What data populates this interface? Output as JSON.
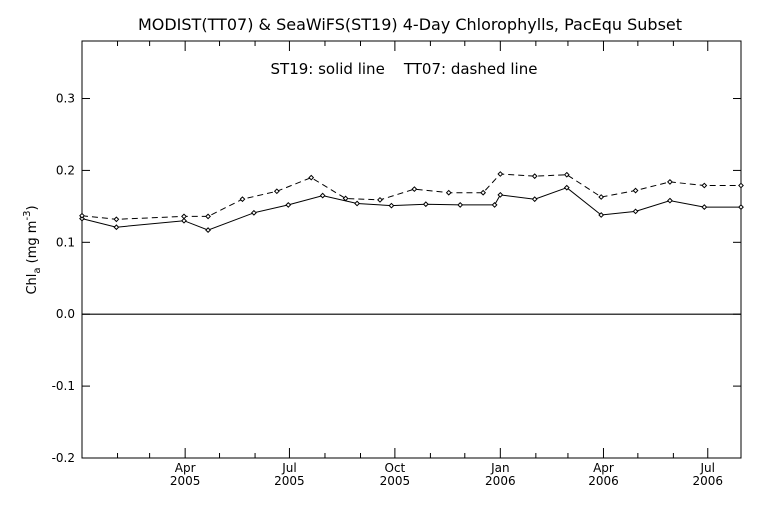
{
  "chart_data": {
    "type": "line",
    "title": "MODIST(TT07) & SeaWiFS(ST19) 4-Day Chlorophylls, PacEqu Subset",
    "subtitle": "ST19: solid line    TT07: dashed line",
    "ylabel_main": "Chl",
    "ylabel_sub": "a",
    "ylabel_units": "(mg m",
    "ylabel_sup": "-3",
    "ylabel_close": ")",
    "ylim": [
      -0.2,
      0.38
    ],
    "xlim": [
      "2005-01-01",
      "2006-07-30"
    ],
    "y_ticks": [
      {
        "value": -0.2,
        "label": "-0.2"
      },
      {
        "value": -0.1,
        "label": "-0.1"
      },
      {
        "value": 0.0,
        "label": "0.0"
      },
      {
        "value": 0.1,
        "label": "0.1"
      },
      {
        "value": 0.2,
        "label": "0.2"
      },
      {
        "value": 0.3,
        "label": "0.3"
      }
    ],
    "x_ticks": [
      {
        "date": "2005-04-01",
        "month": "Apr",
        "year": "2005"
      },
      {
        "date": "2005-07-01",
        "month": "Jul",
        "year": "2005"
      },
      {
        "date": "2005-10-01",
        "month": "Oct",
        "year": "2005"
      },
      {
        "date": "2006-01-01",
        "month": "Jan",
        "year": "2006"
      },
      {
        "date": "2006-04-01",
        "month": "Apr",
        "year": "2006"
      },
      {
        "date": "2006-07-01",
        "month": "Jul",
        "year": "2006"
      }
    ],
    "x_minor_ticks": [
      "2005-02-01",
      "2005-03-01",
      "2005-05-01",
      "2005-06-01",
      "2005-08-01",
      "2005-09-01",
      "2005-11-01",
      "2005-12-01",
      "2006-02-01",
      "2006-03-01",
      "2006-05-01",
      "2006-06-01"
    ],
    "zero_line": 0.0,
    "series": [
      {
        "name": "ST19",
        "style": "solid",
        "x": [
          "2005-01-01",
          "2005-01-31",
          "2005-03-31",
          "2005-04-21",
          "2005-05-31",
          "2005-06-30",
          "2005-07-30",
          "2005-08-29",
          "2005-09-28",
          "2005-10-28",
          "2005-11-27",
          "2005-12-27",
          "2006-01-01",
          "2006-01-31",
          "2006-02-28",
          "2006-03-30",
          "2006-04-29",
          "2006-05-29",
          "2006-06-28",
          "2006-07-30"
        ],
        "values": [
          0.133,
          0.121,
          0.13,
          0.117,
          0.141,
          0.152,
          0.165,
          0.154,
          0.151,
          0.153,
          0.152,
          0.152,
          0.166,
          0.16,
          0.176,
          0.138,
          0.143,
          0.158,
          0.149,
          0.149
        ]
      },
      {
        "name": "TT07",
        "style": "dashed",
        "x": [
          "2005-01-01",
          "2005-01-31",
          "2005-03-31",
          "2005-04-21",
          "2005-05-21",
          "2005-06-20",
          "2005-07-20",
          "2005-08-19",
          "2005-09-18",
          "2005-10-18",
          "2005-11-17",
          "2005-12-17",
          "2006-01-01",
          "2006-01-31",
          "2006-02-28",
          "2006-03-30",
          "2006-04-29",
          "2006-05-29",
          "2006-06-28",
          "2006-07-30"
        ],
        "values": [
          0.137,
          0.132,
          0.136,
          0.136,
          0.16,
          0.171,
          0.19,
          0.161,
          0.159,
          0.174,
          0.169,
          0.169,
          0.195,
          0.192,
          0.194,
          0.163,
          0.172,
          0.184,
          0.179,
          0.179
        ]
      }
    ],
    "grid": false,
    "legend": "subtitle"
  }
}
